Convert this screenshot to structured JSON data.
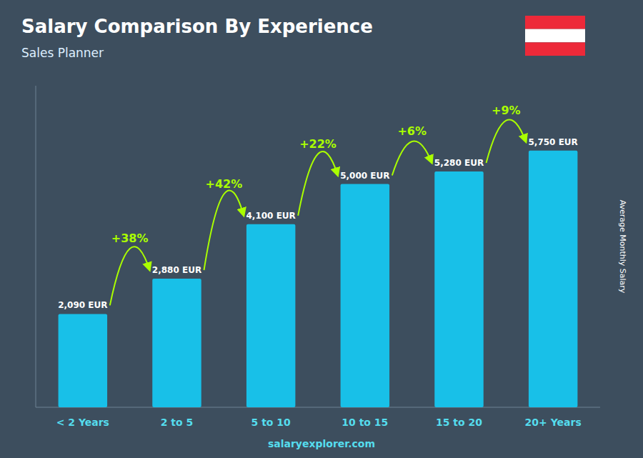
{
  "chart_data": {
    "type": "bar",
    "title": "Salary Comparison By Experience",
    "subtitle": "Sales Planner",
    "ylabel": "Average Monthly Salary",
    "footer": "salaryexplorer.com",
    "categories": [
      "< 2 Years",
      "2 to 5",
      "5 to 10",
      "10 to 15",
      "15 to 20",
      "20+ Years"
    ],
    "values": [
      2090,
      2880,
      4100,
      5000,
      5280,
      5750
    ],
    "value_labels": [
      "2,090 EUR",
      "2,880 EUR",
      "4,100 EUR",
      "5,000 EUR",
      "5,280 EUR",
      "5,750 EUR"
    ],
    "data_labels": true,
    "annotations": [
      "+38%",
      "+42%",
      "+22%",
      "+6%",
      "+9%"
    ],
    "color": "#18C0E8",
    "ylim": [
      0,
      7200
    ],
    "yticks": [],
    "tick_labels": "x",
    "grid": false
  }
}
